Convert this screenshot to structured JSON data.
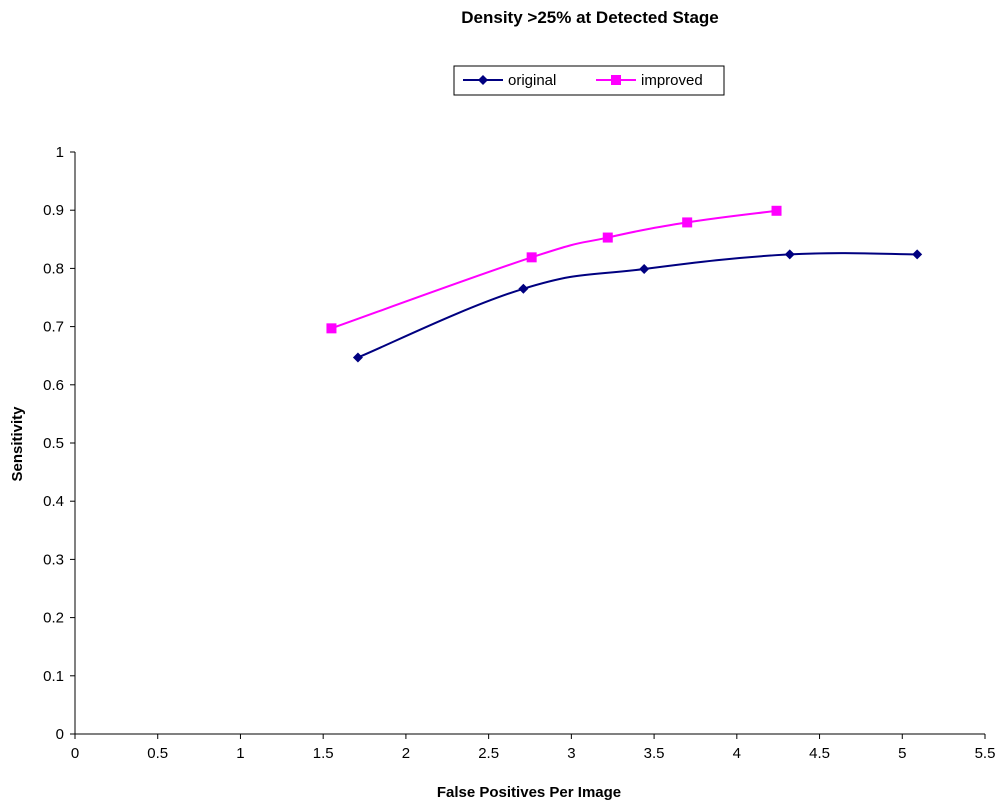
{
  "chart_data": {
    "type": "line",
    "title": "Density >25% at Detected Stage",
    "xlabel": "False Positives Per Image",
    "ylabel": "Sensitivity",
    "xlim": [
      0,
      5.5
    ],
    "ylim": [
      0,
      1
    ],
    "x_ticks": [
      "0",
      "0.5",
      "1",
      "1.5",
      "2",
      "2.5",
      "3",
      "3.5",
      "4",
      "4.5",
      "5",
      "5.5"
    ],
    "y_ticks": [
      "0",
      "0.1",
      "0.2",
      "0.3",
      "0.4",
      "0.5",
      "0.6",
      "0.7",
      "0.8",
      "0.9",
      "1"
    ],
    "grid": false,
    "legend_position": "top-center",
    "smoothed": true,
    "series": [
      {
        "name": "original",
        "color": "#000080",
        "marker": "diamond",
        "points": [
          {
            "x": 1.71,
            "y": 0.647
          },
          {
            "x": 2.71,
            "y": 0.765
          },
          {
            "x": 3.44,
            "y": 0.799
          },
          {
            "x": 4.32,
            "y": 0.824
          },
          {
            "x": 5.09,
            "y": 0.824
          }
        ]
      },
      {
        "name": "improved",
        "color": "#ff00ff",
        "marker": "square",
        "points": [
          {
            "x": 1.55,
            "y": 0.697
          },
          {
            "x": 2.76,
            "y": 0.819
          },
          {
            "x": 3.22,
            "y": 0.853
          },
          {
            "x": 3.7,
            "y": 0.879
          },
          {
            "x": 4.24,
            "y": 0.899
          }
        ]
      }
    ]
  }
}
